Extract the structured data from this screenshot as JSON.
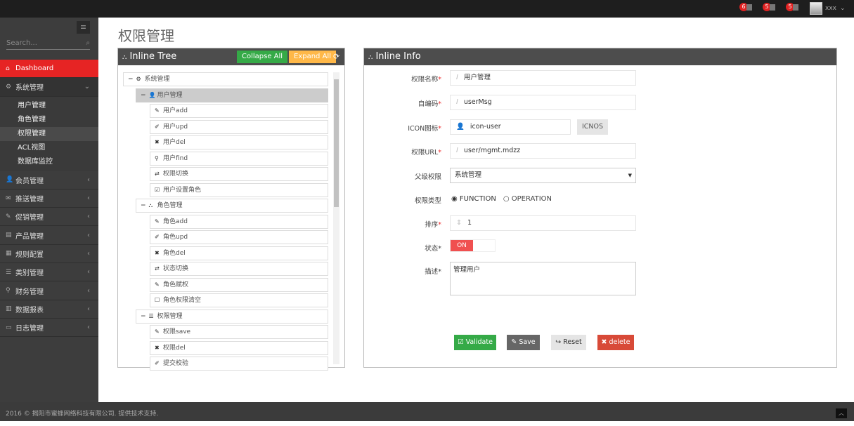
{
  "topbar": {
    "notifications": [
      {
        "count": "6",
        "icon": "warning-icon"
      },
      {
        "count": "5",
        "icon": "envelope-icon"
      },
      {
        "count": "5",
        "icon": "calendar-icon"
      }
    ],
    "username": "xxx"
  },
  "sidebar": {
    "search_placeholder": "Search...",
    "dashboard": "Dashboard",
    "system": "系统管理",
    "sub_items": [
      "用户管理",
      "角色管理",
      "权限管理",
      "ACL视图",
      "数据库监控"
    ],
    "items": [
      "会员管理",
      "推送管理",
      "促销管理",
      "产品管理",
      "规则配置",
      "类别管理",
      "财务管理",
      "数据报表",
      "日志管理"
    ]
  },
  "page": {
    "title": "权限管理"
  },
  "tree_panel": {
    "title": "Inline Tree",
    "collapse": "Collapse All",
    "expand": "Expand All",
    "nodes": [
      {
        "level": 0,
        "label": "系统管理",
        "icon": "cogs-icon",
        "toggle": "−"
      },
      {
        "level": 1,
        "label": "用户管理",
        "icon": "user-icon",
        "toggle": "−",
        "selected": true
      },
      {
        "level": 2,
        "label": "用户add",
        "icon": "pencil-icon"
      },
      {
        "level": 2,
        "label": "用户upd",
        "icon": "edit-icon"
      },
      {
        "level": 2,
        "label": "用户del",
        "icon": "times-icon"
      },
      {
        "level": 2,
        "label": "用户find",
        "icon": "search-icon"
      },
      {
        "level": 2,
        "label": "权限切换",
        "icon": "retweet-icon"
      },
      {
        "level": 2,
        "label": "用户设置角色",
        "icon": "check-square-icon"
      },
      {
        "level": 1,
        "label": "角色管理",
        "icon": "sitemap-icon",
        "toggle": "−"
      },
      {
        "level": 2,
        "label": "角色add",
        "icon": "pencil-icon"
      },
      {
        "level": 2,
        "label": "角色upd",
        "icon": "edit-icon"
      },
      {
        "level": 2,
        "label": "角色del",
        "icon": "times-icon"
      },
      {
        "level": 2,
        "label": "状态切换",
        "icon": "retweet-icon"
      },
      {
        "level": 2,
        "label": "角色赋权",
        "icon": "pencil-icon"
      },
      {
        "level": 2,
        "label": "角色权限清空",
        "icon": "square-icon"
      },
      {
        "level": 1,
        "label": "权限管理",
        "icon": "list-icon",
        "toggle": "−"
      },
      {
        "level": 2,
        "label": "权限save",
        "icon": "pencil-icon"
      },
      {
        "level": 2,
        "label": "权限del",
        "icon": "times-icon"
      },
      {
        "level": 2,
        "label": "提交校验",
        "icon": "edit-icon"
      }
    ]
  },
  "info_panel": {
    "title": "Inline Info",
    "name_label": "权限名称",
    "name_value": "用户管理",
    "code_label": "自编码",
    "code_value": "userMsg",
    "icon_label": "ICON图标",
    "icon_value": "icon-user",
    "icons_button": "ICNOS",
    "url_label": "权限URL",
    "url_value": "user/mgmt.mdzz",
    "parent_label": "父级权限",
    "parent_value": "系统管理",
    "type_label": "权限类型",
    "type_options": [
      "FUNCTION",
      "OPERATION"
    ],
    "type_selected": "FUNCTION",
    "sort_label": "排序",
    "sort_value": "1",
    "status_label": "状态",
    "status_value": "ON",
    "desc_label": "描述",
    "desc_value": "管理用户",
    "required_mark": "*",
    "buttons": {
      "validate": "Validate",
      "save": "Save",
      "reset": "Reset",
      "delete": "delete"
    }
  },
  "footer": {
    "text": "2016 © 揭阳市蜜蜂网络科技有限公司. 提供技术支持."
  },
  "colors": {
    "accent": "#e62424",
    "green": "#35aa47",
    "orange": "#ffb848",
    "delete": "#d84a38"
  }
}
